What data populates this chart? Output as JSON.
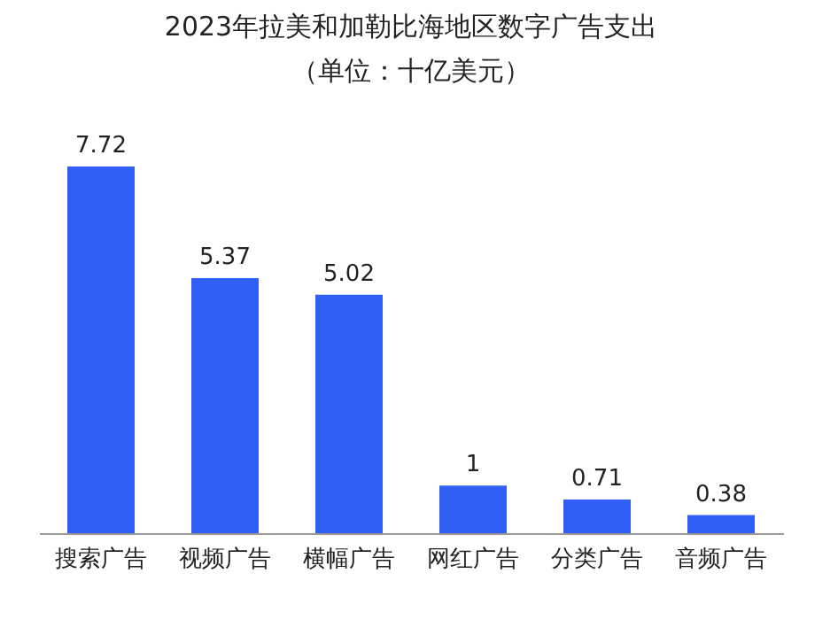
{
  "chart_data": {
    "type": "bar",
    "title": "2023年拉美和加勒比海地区数字广告支出",
    "subtitle": "（单位：十亿美元）",
    "categories": [
      "搜索广告",
      "视频广告",
      "横幅广告",
      "网红广告",
      "分类广告",
      "音频广告"
    ],
    "values": [
      7.72,
      5.37,
      5.02,
      1,
      0.71,
      0.38
    ],
    "color": "#2f5ff5",
    "data_labels": true
  }
}
